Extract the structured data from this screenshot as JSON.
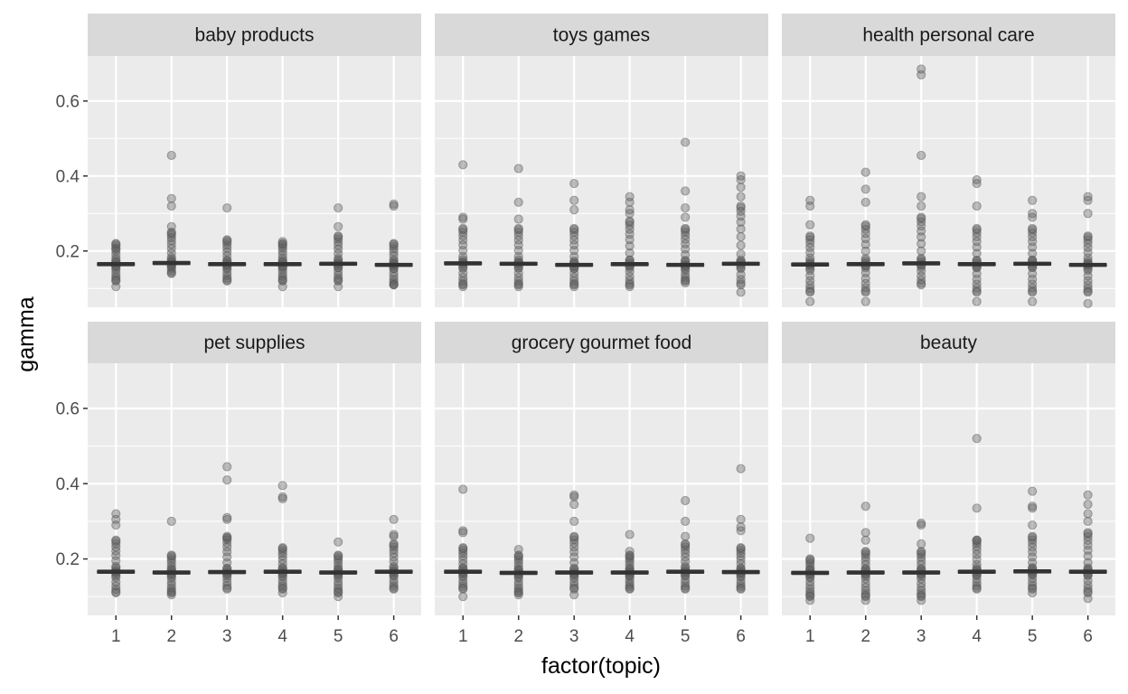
{
  "chart_data": {
    "type": "scatter",
    "xlabel": "factor(topic)",
    "ylabel": "gamma",
    "ylim": [
      0.05,
      0.72
    ],
    "y_ticks": [
      0.2,
      0.4,
      0.6
    ],
    "y_tick_labels": [
      "0.2",
      "0.4",
      "0.6"
    ],
    "categories": [
      "1",
      "2",
      "3",
      "4",
      "5",
      "6"
    ],
    "point_color": "#595959",
    "median_color": "#333333",
    "panel_bg": "#ebebeb",
    "strip_bg": "#d9d9d9",
    "grid_color": "#ffffff",
    "panels": [
      {
        "title": "baby products",
        "median": [
          0.165,
          0.168,
          0.165,
          0.165,
          0.166,
          0.163
        ],
        "range": [
          [
            0.12,
            0.22
          ],
          [
            0.14,
            0.25
          ],
          [
            0.12,
            0.23
          ],
          [
            0.12,
            0.22
          ],
          [
            0.12,
            0.24
          ],
          [
            0.11,
            0.22
          ]
        ],
        "outliers": [
          [
            0.105,
            0.205
          ],
          [
            0.455,
            0.34,
            0.32,
            0.265
          ],
          [
            0.315
          ],
          [
            0.225,
            0.105
          ],
          [
            0.315,
            0.265,
            0.105
          ],
          [
            0.325,
            0.32,
            0.11
          ]
        ]
      },
      {
        "title": "toys games",
        "median": [
          0.167,
          0.166,
          0.163,
          0.165,
          0.163,
          0.166
        ],
        "range": [
          [
            0.11,
            0.26
          ],
          [
            0.11,
            0.26
          ],
          [
            0.11,
            0.26
          ],
          [
            0.11,
            0.28
          ],
          [
            0.12,
            0.26
          ],
          [
            0.11,
            0.32
          ]
        ],
        "outliers": [
          [
            0.43,
            0.29,
            0.285,
            0.105
          ],
          [
            0.42,
            0.33,
            0.285,
            0.105
          ],
          [
            0.38,
            0.335,
            0.31,
            0.105
          ],
          [
            0.345,
            0.33,
            0.31,
            0.3,
            0.105
          ],
          [
            0.49,
            0.36,
            0.315,
            0.29,
            0.115
          ],
          [
            0.4,
            0.39,
            0.37,
            0.345,
            0.09
          ]
        ]
      },
      {
        "title": "health personal care",
        "median": [
          0.164,
          0.165,
          0.167,
          0.165,
          0.166,
          0.163
        ],
        "range": [
          [
            0.09,
            0.24
          ],
          [
            0.09,
            0.27
          ],
          [
            0.11,
            0.29
          ],
          [
            0.09,
            0.26
          ],
          [
            0.09,
            0.26
          ],
          [
            0.09,
            0.24
          ]
        ],
        "outliers": [
          [
            0.335,
            0.32,
            0.27,
            0.065
          ],
          [
            0.41,
            0.365,
            0.33,
            0.065
          ],
          [
            0.685,
            0.67,
            0.455,
            0.345,
            0.32
          ],
          [
            0.39,
            0.38,
            0.32,
            0.065
          ],
          [
            0.335,
            0.3,
            0.29,
            0.065
          ],
          [
            0.345,
            0.335,
            0.3,
            0.06
          ]
        ]
      },
      {
        "title": "pet supplies",
        "median": [
          0.166,
          0.164,
          0.165,
          0.166,
          0.164,
          0.166
        ],
        "range": [
          [
            0.11,
            0.25
          ],
          [
            0.11,
            0.21
          ],
          [
            0.12,
            0.26
          ],
          [
            0.12,
            0.23
          ],
          [
            0.11,
            0.21
          ],
          [
            0.12,
            0.24
          ]
        ],
        "outliers": [
          [
            0.32,
            0.305,
            0.29
          ],
          [
            0.3,
            0.105
          ],
          [
            0.445,
            0.41,
            0.31,
            0.305,
            0.255
          ],
          [
            0.395,
            0.365,
            0.36,
            0.11
          ],
          [
            0.245,
            0.1
          ],
          [
            0.305,
            0.265,
            0.26
          ]
        ]
      },
      {
        "title": "grocery gourmet food",
        "median": [
          0.166,
          0.163,
          0.164,
          0.164,
          0.166,
          0.165
        ],
        "range": [
          [
            0.12,
            0.23
          ],
          [
            0.11,
            0.21
          ],
          [
            0.12,
            0.26
          ],
          [
            0.12,
            0.21
          ],
          [
            0.12,
            0.24
          ],
          [
            0.12,
            0.23
          ]
        ],
        "outliers": [
          [
            0.385,
            0.275,
            0.27,
            0.1
          ],
          [
            0.225,
            0.105
          ],
          [
            0.37,
            0.365,
            0.345,
            0.3,
            0.105
          ],
          [
            0.265,
            0.22
          ],
          [
            0.355,
            0.3,
            0.26
          ],
          [
            0.44,
            0.305,
            0.285,
            0.275
          ]
        ]
      },
      {
        "title": "beauty",
        "median": [
          0.163,
          0.164,
          0.164,
          0.166,
          0.167,
          0.166
        ],
        "range": [
          [
            0.1,
            0.2
          ],
          [
            0.1,
            0.22
          ],
          [
            0.1,
            0.22
          ],
          [
            0.12,
            0.25
          ],
          [
            0.12,
            0.26
          ],
          [
            0.11,
            0.27
          ]
        ],
        "outliers": [
          [
            0.255,
            0.09
          ],
          [
            0.34,
            0.27,
            0.25,
            0.09
          ],
          [
            0.295,
            0.29,
            0.24,
            0.09
          ],
          [
            0.52,
            0.335,
            0.25
          ],
          [
            0.38,
            0.34,
            0.335,
            0.29,
            0.11
          ],
          [
            0.37,
            0.345,
            0.32,
            0.3,
            0.095
          ]
        ]
      }
    ]
  }
}
